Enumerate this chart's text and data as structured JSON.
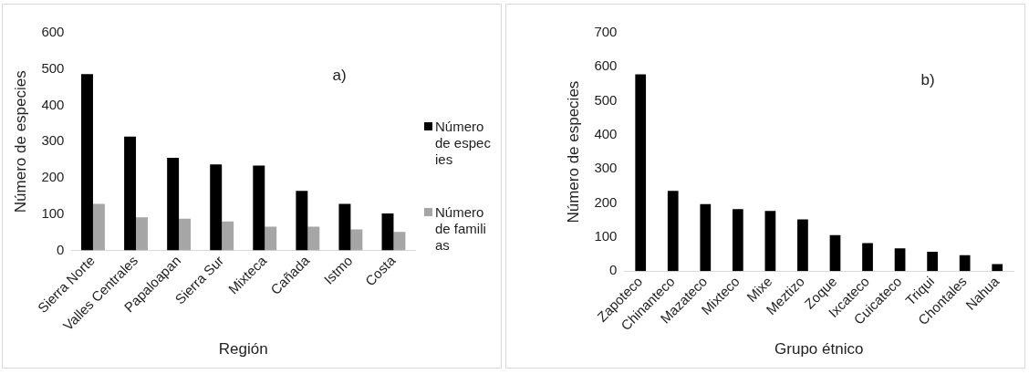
{
  "chart_data": [
    {
      "type": "bar",
      "xlabel": "Región",
      "ylabel": "Número de especies",
      "annotations": [
        "a)"
      ],
      "categories": [
        "Sierra Norte",
        "Valles Centrales",
        "Papaloapan",
        "Sierra Sur",
        "Mixteca",
        "Cañada",
        "Istmo",
        "Costa"
      ],
      "series": [
        {
          "name": "Número de especies",
          "color": "#000000",
          "values": [
            486,
            314,
            255,
            237,
            234,
            164,
            128,
            102
          ]
        },
        {
          "name": "Número de familias",
          "color": "#a6a6a6",
          "values": [
            128,
            91,
            87,
            80,
            65,
            65,
            58,
            51
          ]
        }
      ],
      "ylim": [
        0,
        600
      ],
      "yticks": [
        0,
        100,
        200,
        300,
        400,
        500,
        600
      ],
      "grid": false,
      "legend": "right"
    },
    {
      "type": "bar",
      "xlabel": "Grupo étnico",
      "ylabel": "Número de especies",
      "annotations": [
        "b)"
      ],
      "categories": [
        "Zapoteco",
        "Chinanteco",
        "Mazateco",
        "Mixteco",
        "Mixe",
        "Meztizo",
        "Zoque",
        "Ixcateco",
        "Cuicateco",
        "Triqui",
        "Chontales",
        "Nahua"
      ],
      "series": [
        {
          "color": "#000000",
          "values": [
            578,
            236,
            197,
            182,
            177,
            152,
            106,
            82,
            67,
            57,
            47,
            21
          ]
        }
      ],
      "ylim": [
        0,
        700
      ],
      "yticks": [
        0,
        100,
        200,
        300,
        400,
        500,
        600,
        700
      ],
      "grid": false
    }
  ]
}
